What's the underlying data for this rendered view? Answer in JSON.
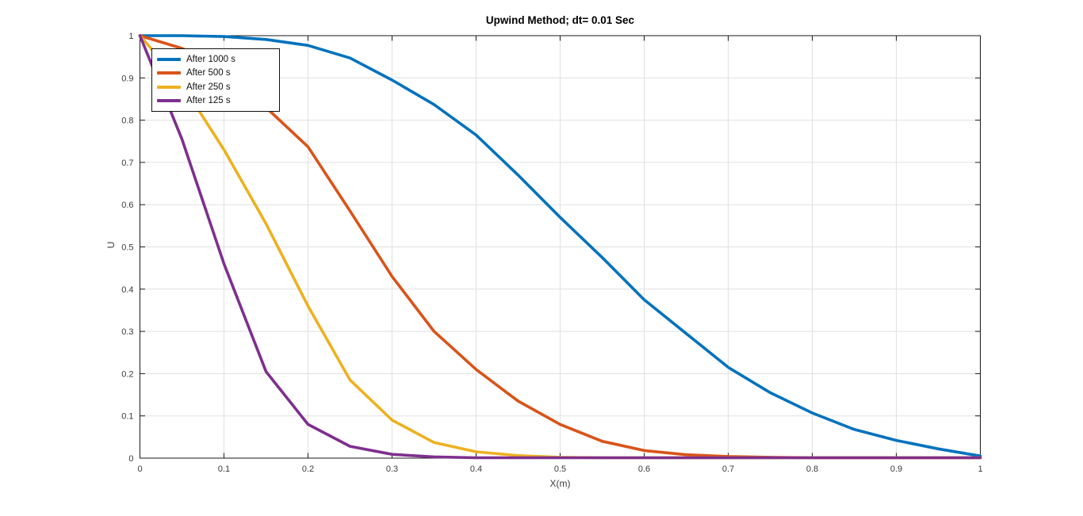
{
  "figure": {
    "background": "#ffffff",
    "axis_color": "#1a1a1a",
    "grid_color": "#e0e0e0",
    "tick_label_color": "#3a3a3a"
  },
  "chart_data": {
    "type": "line",
    "title": "Upwind Method; dt= 0.01 Sec",
    "xlabel": "X(m)",
    "ylabel": "U",
    "xlim": [
      0,
      1
    ],
    "ylim": [
      0,
      1
    ],
    "grid": true,
    "box": true,
    "tick_direction": "in",
    "legend_position": "top-left",
    "xticks": [
      0,
      0.1,
      0.2,
      0.3,
      0.4,
      0.5,
      0.6,
      0.7,
      0.8,
      0.9,
      1
    ],
    "xtick_labels": [
      "0",
      "0.1",
      "0.2",
      "0.3",
      "0.4",
      "0.5",
      "0.6",
      "0.7",
      "0.8",
      "0.9",
      "1"
    ],
    "yticks": [
      0,
      0.1,
      0.2,
      0.3,
      0.4,
      0.5,
      0.6,
      0.7,
      0.8,
      0.9,
      1
    ],
    "ytick_labels": [
      "0",
      "0.1",
      "0.2",
      "0.3",
      "0.4",
      "0.5",
      "0.6",
      "0.7",
      "0.8",
      "0.9",
      "1"
    ],
    "x": [
      0,
      0.05,
      0.1,
      0.15,
      0.2,
      0.25,
      0.3,
      0.35,
      0.4,
      0.45,
      0.5,
      0.55,
      0.6,
      0.65,
      0.7,
      0.75,
      0.8,
      0.85,
      0.9,
      0.95,
      1
    ],
    "series": [
      {
        "name": "After 1000 s",
        "color": "#0072BD",
        "values": [
          1,
          1,
          0.998,
          0.991,
          0.977,
          0.947,
          0.895,
          0.837,
          0.765,
          0.67,
          0.57,
          0.475,
          0.375,
          0.295,
          0.215,
          0.155,
          0.107,
          0.068,
          0.042,
          0.022,
          0.005
        ]
      },
      {
        "name": "After 500 s",
        "color": "#D95319",
        "values": [
          1,
          0.97,
          0.925,
          0.83,
          0.737,
          0.585,
          0.43,
          0.3,
          0.21,
          0.135,
          0.08,
          0.04,
          0.018,
          0.008,
          0.004,
          0.002,
          0.001,
          0.001,
          0.001,
          0.001,
          0.001
        ]
      },
      {
        "name": "After 250 s",
        "color": "#EDB120",
        "values": [
          1,
          0.885,
          0.73,
          0.555,
          0.36,
          0.185,
          0.09,
          0.037,
          0.015,
          0.006,
          0.002,
          0.001,
          0.001,
          0.001,
          0.001,
          0.001,
          0.001,
          0.001,
          0.001,
          0.001,
          0.001
        ]
      },
      {
        "name": "After 125 s",
        "color": "#7E2F8E",
        "values": [
          1,
          0.755,
          0.46,
          0.205,
          0.08,
          0.028,
          0.009,
          0.003,
          0.001,
          0.001,
          0.001,
          0.001,
          0.001,
          0.001,
          0.001,
          0.001,
          0.001,
          0.001,
          0.001,
          0.001,
          0.001
        ]
      }
    ]
  }
}
